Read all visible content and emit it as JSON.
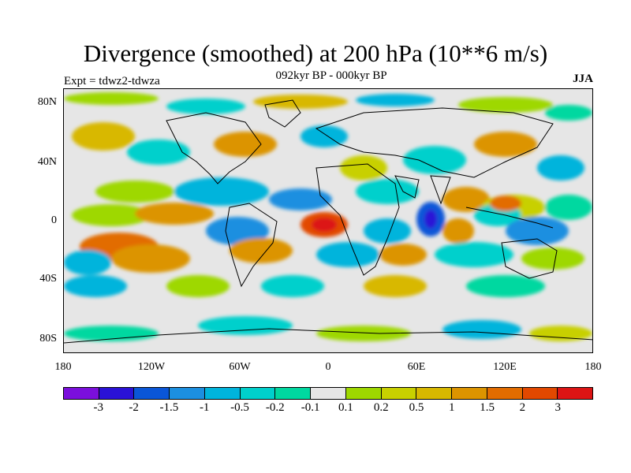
{
  "title": "Divergence (smoothed) at 200 hPa (10**6 m/s)",
  "subtitle": "092kyr BP - 000kyr BP",
  "left_label": "Expt = tdwz2-tdwza",
  "right_label": "JJA",
  "lat_ticks": [
    "80N",
    "40N",
    "0",
    "40S",
    "80S"
  ],
  "lon_ticks": [
    "180",
    "120W",
    "60W",
    "0",
    "60E",
    "120E",
    "180"
  ],
  "colorbar": {
    "colors": [
      "#7b0fdc",
      "#2a12d6",
      "#0a56d8",
      "#1c8fe0",
      "#00b4dc",
      "#00d0cc",
      "#00d8a0",
      "#e6e6e6",
      "#9ed800",
      "#c8d000",
      "#d8b800",
      "#dc9400",
      "#e26c00",
      "#e24800",
      "#dc1414"
    ],
    "labels": [
      "-3",
      "-2",
      "-1.5",
      "-1",
      "-0.5",
      "-0.2",
      "-0.1",
      "0.1",
      "0.2",
      "0.5",
      "1",
      "1.5",
      "2",
      "3"
    ]
  }
}
